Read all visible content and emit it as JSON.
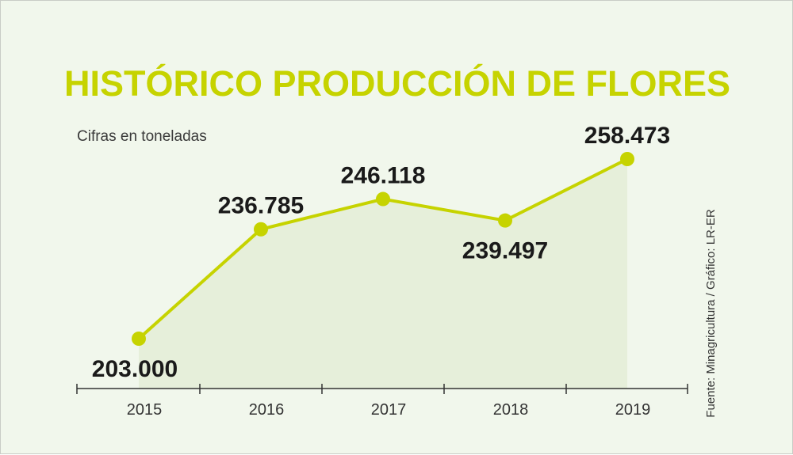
{
  "colors": {
    "background": "#f1f7ec",
    "accent": "#c6d300",
    "area_fill": "#e6efda",
    "axis": "#333333",
    "text": "#1a1a1a"
  },
  "source": "Fuente: Minagricultura / Gráfico: LR-ER",
  "chart_data": {
    "type": "line",
    "title": "HISTÓRICO PRODUCCIÓN DE FLORES",
    "subtitle": "Cifras en toneladas",
    "categories": [
      "2015",
      "2016",
      "2017",
      "2018",
      "2019"
    ],
    "series": [
      {
        "values": [
          203000,
          236785,
          246118,
          239497,
          258473
        ],
        "labels": [
          "203.000",
          "236.785",
          "246.118",
          "239.497",
          "258.473"
        ]
      }
    ],
    "area_under_line": true,
    "markers": true,
    "grid": false,
    "legend": false
  }
}
